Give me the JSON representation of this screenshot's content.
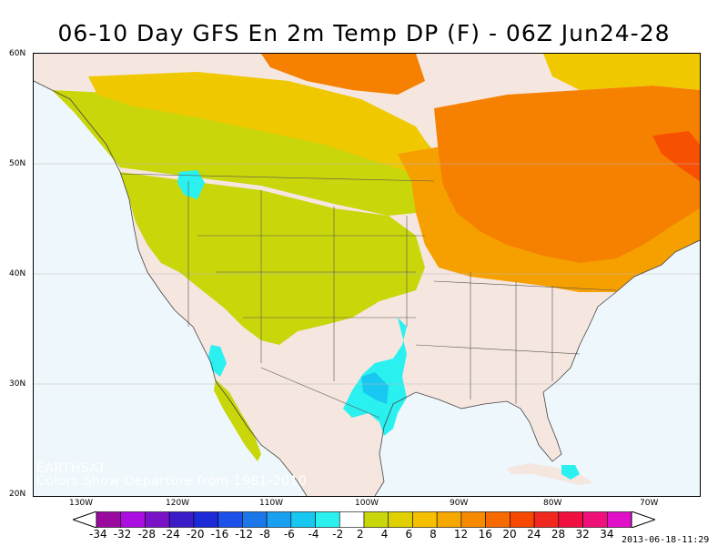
{
  "title": "06-10 Day GFS En 2m Temp DP (F) - 06Z Jun24-28",
  "credit": {
    "org": "EARTHSAT",
    "note": "Colors Show Departure from 1981-2010"
  },
  "timestamp": "2013-06-18-11:29",
  "lat_labels": [
    "60N",
    "50N",
    "40N",
    "30N",
    "20N"
  ],
  "lon_labels": [
    "130W",
    "120W",
    "110W",
    "100W",
    "90W",
    "80W",
    "70W"
  ],
  "legend": {
    "tick_labels": [
      "-34",
      "-32",
      "-28",
      "-24",
      "-20",
      "-16",
      "-12",
      "-8",
      "-6",
      "-4",
      "-2",
      "2",
      "4",
      "6",
      "8",
      "12",
      "16",
      "20",
      "24",
      "28",
      "32",
      "34"
    ],
    "colors": [
      "#9a0aa0",
      "#aa0ee0",
      "#7a12c8",
      "#3a1cc8",
      "#1c2ad8",
      "#1c50e8",
      "#1c78e8",
      "#1aa0f0",
      "#18c8f0",
      "#2af0f0",
      "#ffffff",
      "#c8d60a",
      "#e0d000",
      "#f6c000",
      "#f6a800",
      "#f68a00",
      "#f66a00",
      "#f64800",
      "#f02820",
      "#f01040",
      "#f0107a",
      "#e010c8"
    ]
  },
  "colors": {
    "ocean": "#eef7fb",
    "land_neutral": "#f5e6df",
    "yellowgreen": "#c8d60a",
    "yellow": "#f0c800",
    "orange": "#f6a000",
    "darkorange": "#f68000",
    "redorange": "#f65000",
    "cyan": "#2af0f0",
    "lightblue": "#18c8f0"
  }
}
